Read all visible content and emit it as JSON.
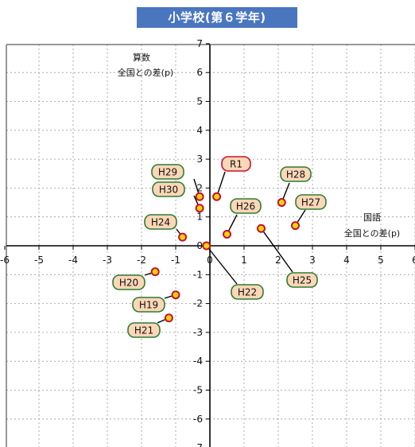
{
  "chart_data": {
    "type": "scatter",
    "title": "小学校(第６学年)",
    "xlabel": [
      "国語",
      "全国との差(p)"
    ],
    "ylabel": [
      "算数",
      "全国との差(p)"
    ],
    "xlim": [
      -6,
      6
    ],
    "ylim": [
      -7,
      7
    ],
    "x_ticks": [
      -6,
      -5,
      -4,
      -3,
      -2,
      -1,
      0,
      1,
      2,
      3,
      4,
      5,
      6
    ],
    "y_ticks": [
      -7,
      -6,
      -5,
      -4,
      -3,
      -2,
      -1,
      0,
      1,
      2,
      3,
      4,
      5,
      6,
      7
    ],
    "grid": true,
    "points": [
      {
        "label": "R1",
        "x": 0.2,
        "y": 1.7,
        "highlight": true
      },
      {
        "label": "H30",
        "x": -0.3,
        "y": 1.3
      },
      {
        "label": "H29",
        "x": -0.3,
        "y": 1.7
      },
      {
        "label": "H28",
        "x": 2.1,
        "y": 1.5
      },
      {
        "label": "H27",
        "x": 2.5,
        "y": 0.7
      },
      {
        "label": "H26",
        "x": 0.5,
        "y": 0.4
      },
      {
        "label": "H25",
        "x": 1.5,
        "y": 0.6
      },
      {
        "label": "H24",
        "x": -0.8,
        "y": 0.3
      },
      {
        "label": "H22",
        "x": -0.1,
        "y": 0.0
      },
      {
        "label": "H21",
        "x": -1.2,
        "y": -2.5
      },
      {
        "label": "H20",
        "x": -1.6,
        "y": -0.9
      },
      {
        "label": "H19",
        "x": -1.0,
        "y": -1.7
      }
    ],
    "colors": {
      "marker_fill": "#f2d60a",
      "marker_stroke": "#c8102e",
      "label_fill": "#fbd7b8",
      "label_stroke_default": "#2e7d32",
      "label_stroke_highlight": "#c8102e",
      "title_bg": "#4a76c0"
    }
  }
}
